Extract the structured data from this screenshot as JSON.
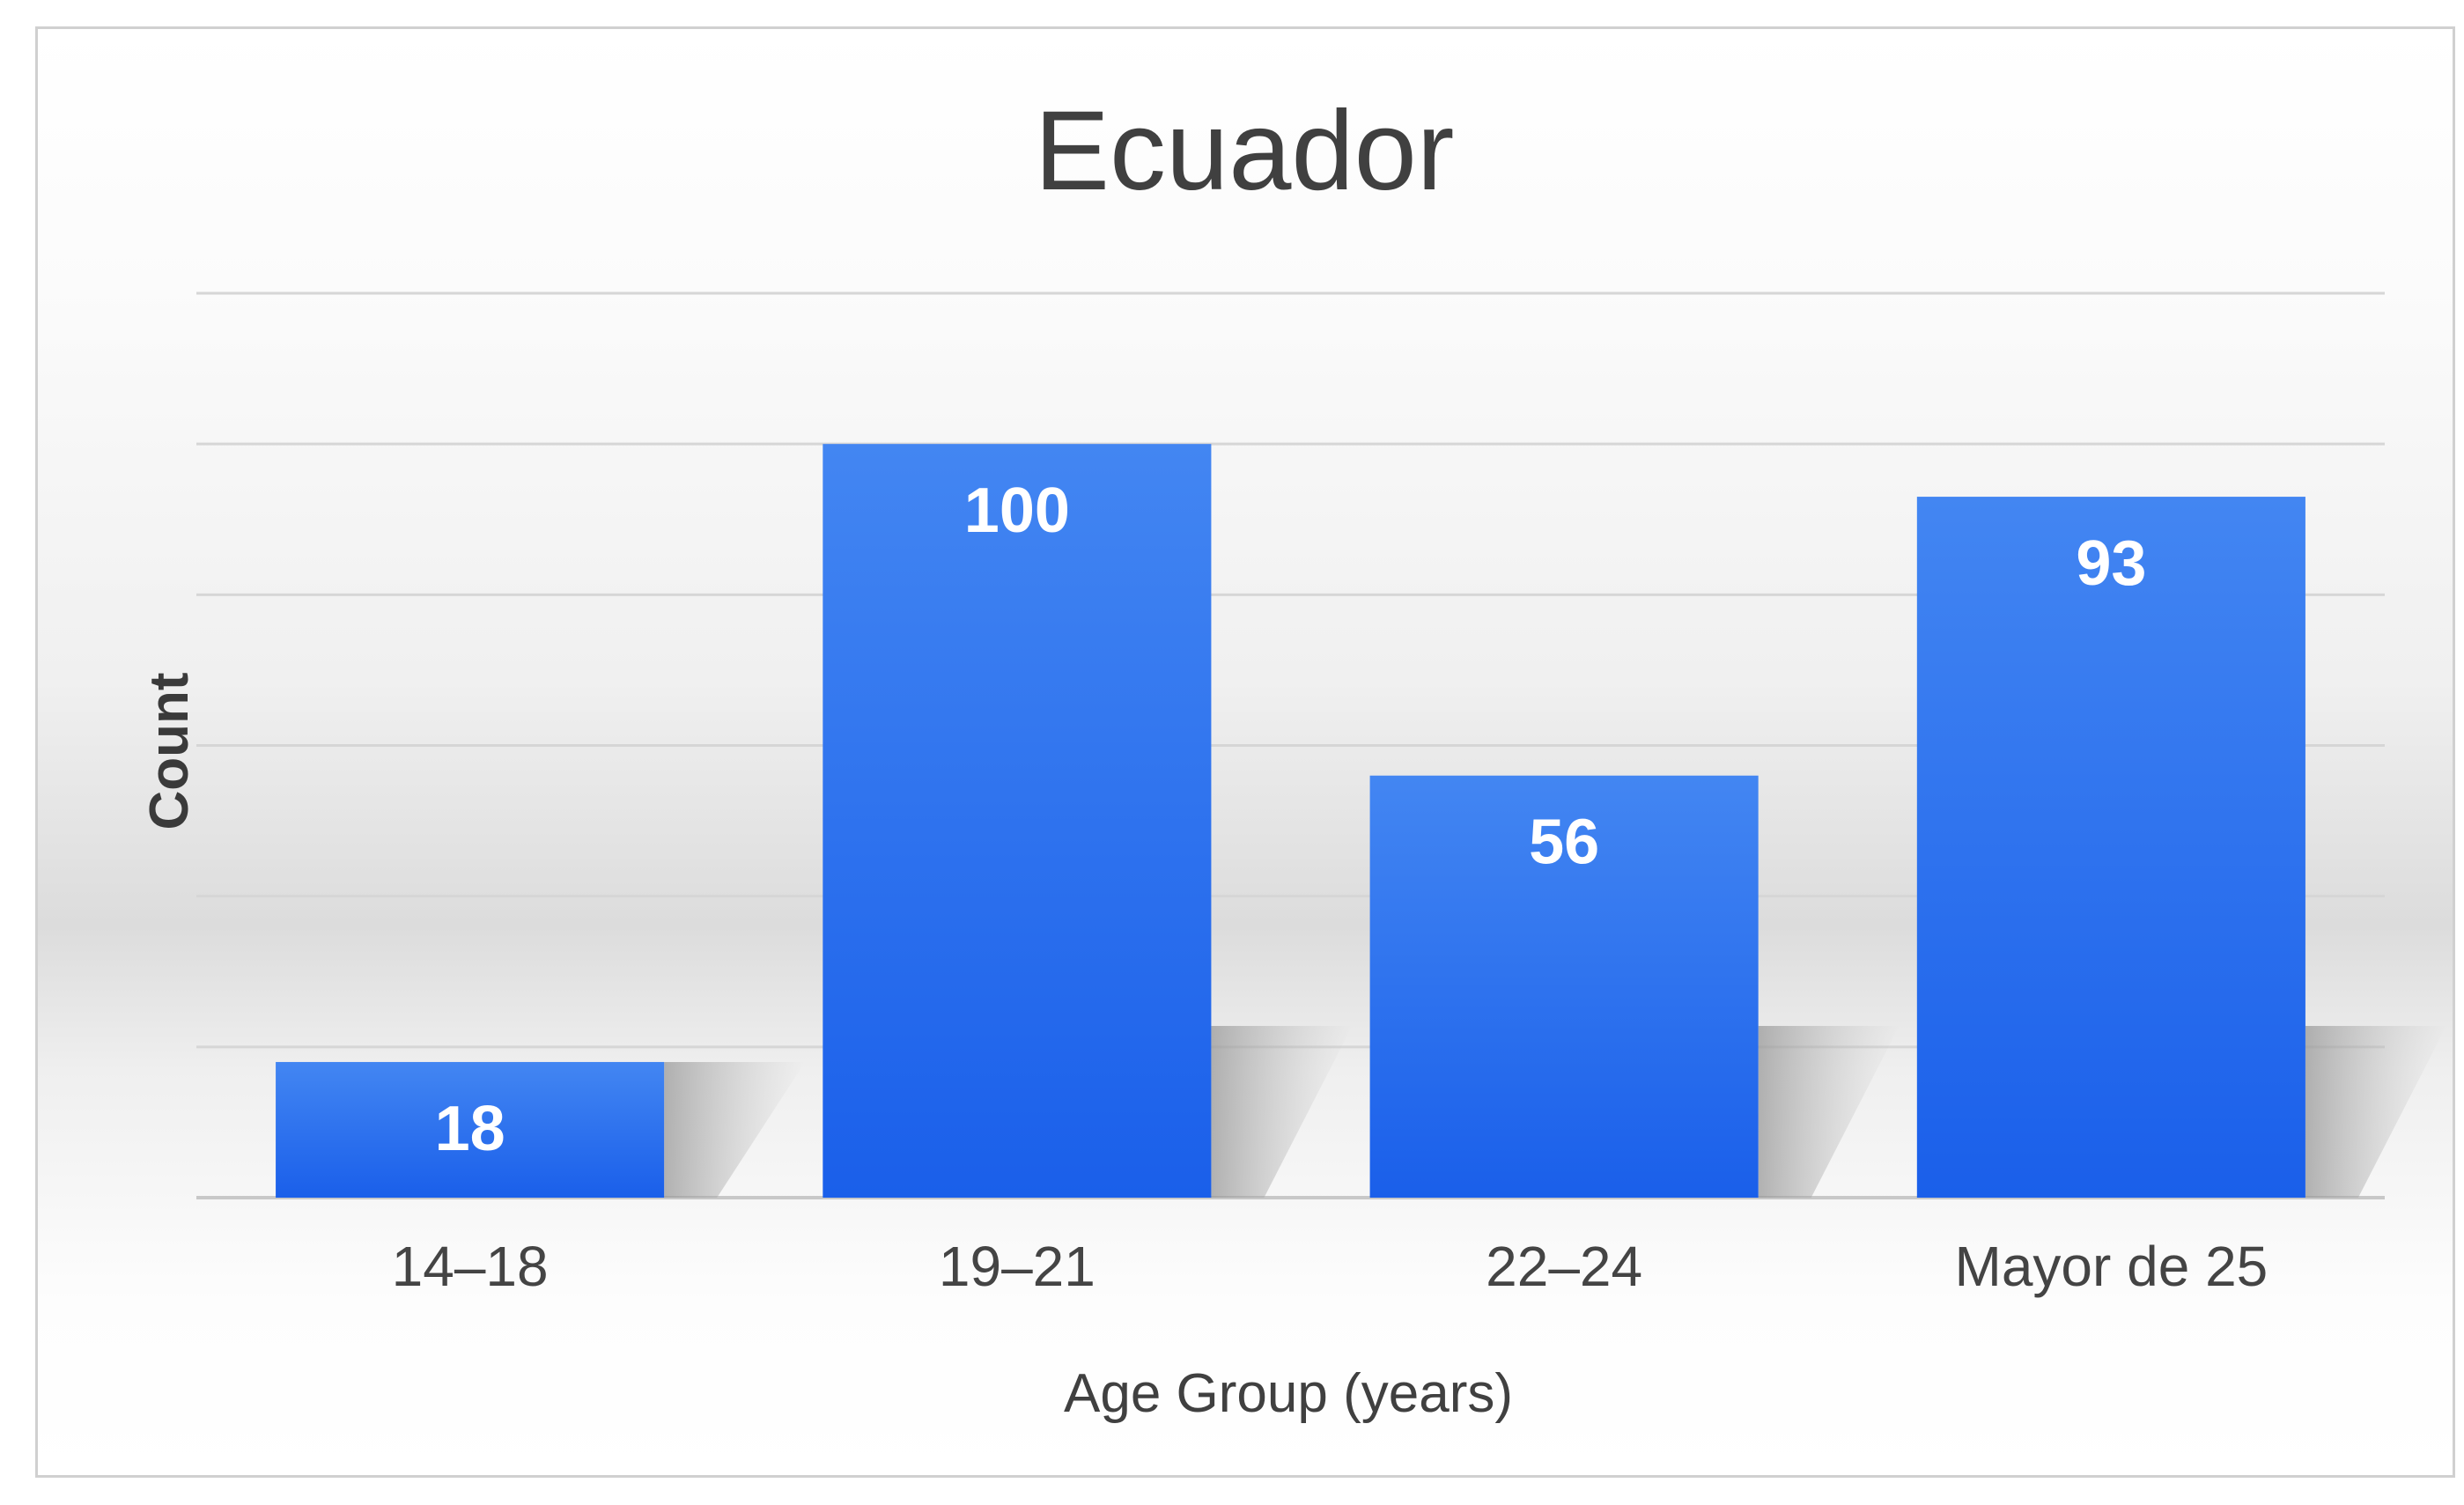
{
  "chart_data": {
    "type": "bar",
    "title": "Ecuador",
    "xlabel": "Age Group (years)",
    "ylabel": "Count",
    "categories": [
      "14–18",
      "19–21",
      "22–24",
      "Mayor de 25"
    ],
    "values": [
      18,
      100,
      56,
      93
    ],
    "data_labels": [
      "18",
      "100",
      "56",
      "93"
    ],
    "ylim": [
      0,
      120
    ],
    "y_tick_step": 20,
    "y_tick_labels_visible": false,
    "grid": true,
    "legend": "none",
    "bar_color": "#2F6FEF",
    "bar_color_light": "#4386F2",
    "bar_color_dark": "#1A5FEA",
    "data_label_color": "#ffffff"
  }
}
